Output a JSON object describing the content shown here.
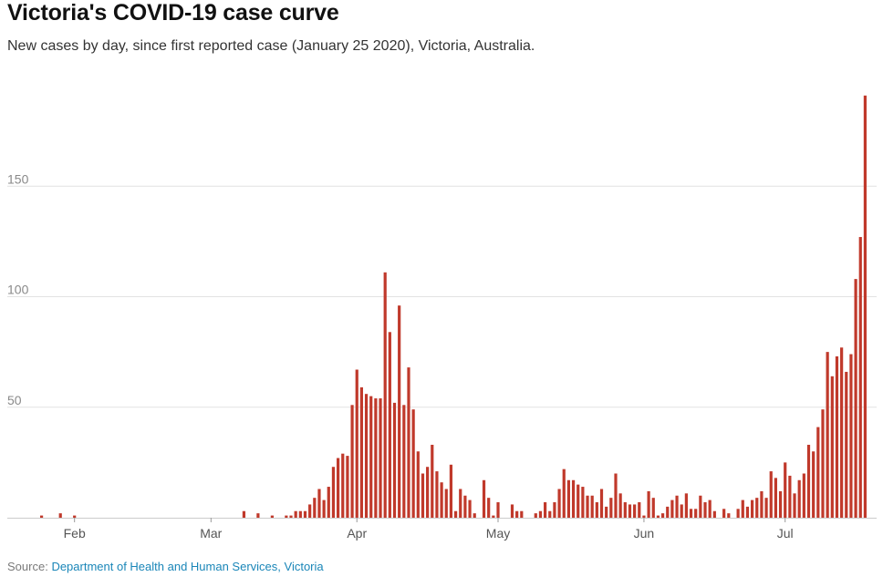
{
  "chart_data": {
    "type": "bar",
    "title": "Victoria's COVID-19 case curve",
    "subtitle": "New cases by day, since first reported case (January 25 2020), Victoria, Australia.",
    "xlabel": "",
    "ylabel": "",
    "ylim": [
      0,
      190
    ],
    "yticks": [
      50,
      100,
      150
    ],
    "xticks": [
      {
        "label": "Feb",
        "day_index": 7
      },
      {
        "label": "Mar",
        "day_index": 36
      },
      {
        "label": "Apr",
        "day_index": 67
      },
      {
        "label": "May",
        "day_index": 97
      },
      {
        "label": "Jun",
        "day_index": 128
      },
      {
        "label": "Jul",
        "day_index": 158
      }
    ],
    "start_date": "2020-01-25",
    "series": [
      {
        "name": "New cases",
        "color": "#c0392b",
        "values": [
          1,
          0,
          0,
          0,
          2,
          0,
          0,
          1,
          0,
          0,
          0,
          0,
          0,
          0,
          0,
          0,
          0,
          0,
          0,
          0,
          0,
          0,
          0,
          0,
          0,
          0,
          0,
          0,
          0,
          0,
          0,
          0,
          0,
          0,
          0,
          0,
          0,
          0,
          0,
          0,
          0,
          0,
          0,
          3,
          0,
          0,
          2,
          0,
          0,
          1,
          0,
          0,
          1,
          1,
          3,
          3,
          3,
          6,
          9,
          13,
          8,
          14,
          23,
          27,
          29,
          28,
          51,
          67,
          59,
          56,
          55,
          54,
          54,
          111,
          84,
          52,
          96,
          51,
          68,
          49,
          30,
          20,
          23,
          33,
          21,
          16,
          13,
          24,
          3,
          13,
          10,
          8,
          2,
          0,
          17,
          9,
          1,
          7,
          0,
          0,
          6,
          3,
          3,
          0,
          0,
          2,
          3,
          7,
          3,
          7,
          13,
          22,
          17,
          17,
          15,
          14,
          10,
          10,
          7,
          13,
          5,
          9,
          20,
          11,
          7,
          6,
          6,
          7,
          1,
          12,
          9,
          1,
          2,
          5,
          8,
          10,
          6,
          11,
          4,
          4,
          10,
          7,
          8,
          3,
          0,
          4,
          2,
          0,
          4,
          8,
          5,
          8,
          9,
          12,
          9,
          21,
          18,
          12,
          25,
          19,
          11,
          17,
          20,
          33,
          30,
          41,
          49,
          75,
          64,
          73,
          77,
          66,
          74,
          108,
          127,
          191
        ]
      }
    ]
  },
  "source": {
    "label": "Source:",
    "link_text": "Department of Health and Human Services, Victoria"
  }
}
